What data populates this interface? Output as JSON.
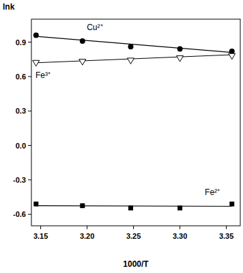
{
  "chart_data": {
    "type": "scatter",
    "x_label": "1000/T",
    "y_label": "lnk",
    "xlim": [
      3.14,
      3.365
    ],
    "xticks": [
      3.15,
      3.2,
      3.25,
      3.3,
      3.35
    ],
    "ylim": [
      -0.7,
      1.1
    ],
    "yticks": [
      -0.6,
      -0.3,
      0.0,
      0.3,
      0.6,
      0.9
    ],
    "grid": false,
    "x": [
      3.145,
      3.195,
      3.247,
      3.3,
      3.356
    ],
    "series": [
      {
        "name": "Cu²⁺",
        "color": "#000000",
        "marker": "circle",
        "values": [
          0.96,
          0.91,
          0.86,
          0.84,
          0.82
        ],
        "fit": {
          "x": [
            3.145,
            3.356
          ],
          "values": [
            0.95,
            0.81
          ]
        }
      },
      {
        "name": "Fe³⁺",
        "color": "#000000",
        "marker": "triangle-down-open",
        "values": [
          0.72,
          0.73,
          0.74,
          0.76,
          0.78
        ],
        "fit": {
          "x": [
            3.145,
            3.356
          ],
          "values": [
            0.72,
            0.79
          ]
        }
      },
      {
        "name": "Fe²⁺",
        "color": "#000000",
        "marker": "square",
        "values": [
          -0.51,
          -0.525,
          -0.545,
          -0.545,
          -0.51
        ],
        "fit": {
          "x": [
            3.145,
            3.356
          ],
          "values": [
            -0.525,
            -0.53
          ]
        }
      }
    ]
  }
}
